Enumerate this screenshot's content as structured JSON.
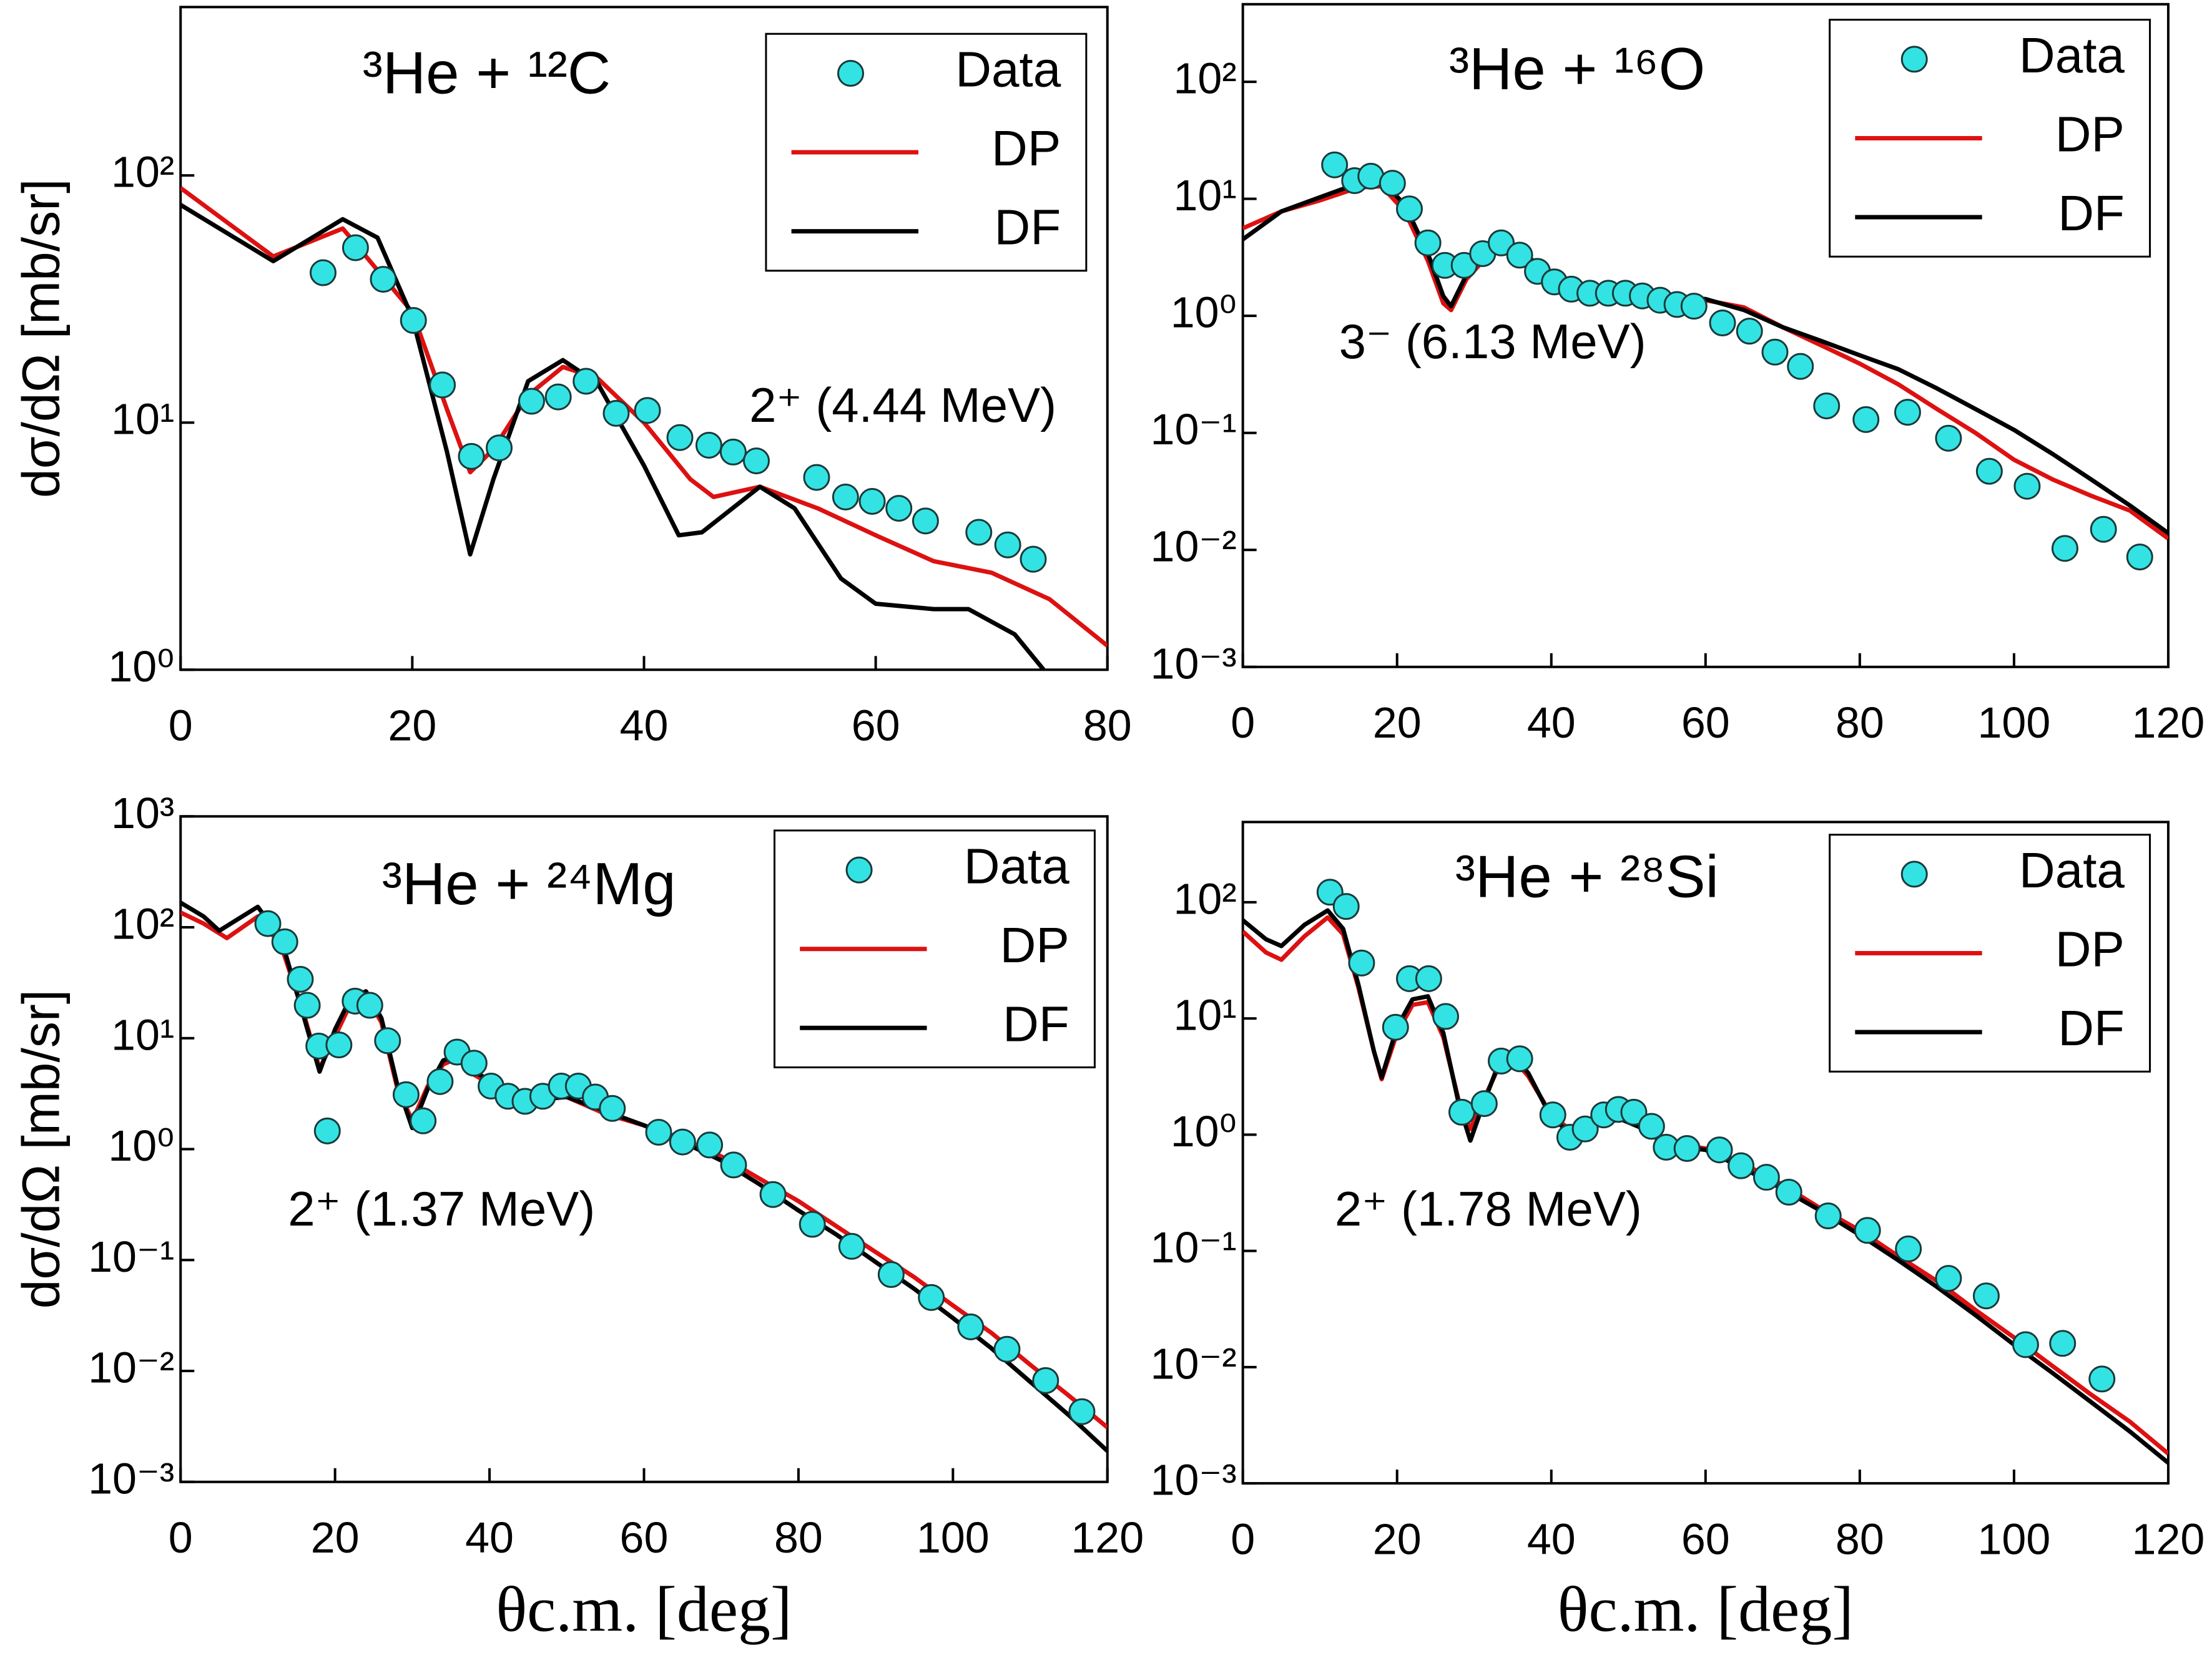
{
  "chart_data": [
    {
      "type": "line",
      "title": "³He + ¹²C",
      "annotation": "2⁺ (4.44 MeV)",
      "ylabel": "dσ/dΩ [mb/sr]",
      "log_y": true,
      "legend": "upper right",
      "xlim": [
        0,
        80
      ],
      "xticks": [
        0,
        20,
        40,
        60,
        80
      ],
      "ylim": [
        1,
        480
      ],
      "yticks": [
        {
          "value": 1,
          "label": "10⁰"
        },
        {
          "value": 10,
          "label": "10¹"
        },
        {
          "value": 100,
          "label": "10²"
        }
      ],
      "series": [
        {
          "name": "Data",
          "color": "#33e3e3",
          "style": "markers",
          "x": [
            12.3,
            15.1,
            17.5,
            20.1,
            22.6,
            25.1,
            27.5,
            30.3,
            32.6,
            35.0,
            37.6,
            40.3,
            43.1,
            45.6,
            47.7,
            49.7,
            54.9,
            57.4,
            59.7,
            62.0,
            64.3,
            68.9,
            71.4,
            73.6
          ],
          "values": [
            40.4,
            51,
            38,
            25.9,
            14.2,
            7.3,
            7.9,
            12.2,
            12.7,
            14.7,
            10.9,
            11.2,
            8.7,
            8.1,
            7.6,
            7.0,
            6.0,
            5.0,
            4.8,
            4.5,
            4.0,
            3.6,
            3.2,
            2.8
          ]
        },
        {
          "name": "DP",
          "color": "#dd1111",
          "style": "line",
          "x": [
            0,
            8,
            14,
            20,
            23,
            25,
            27,
            30,
            33,
            36,
            40,
            44,
            46,
            50,
            55,
            60,
            65,
            70,
            75,
            80
          ],
          "values": [
            89,
            47,
            61,
            28,
            11.3,
            6.3,
            7.8,
            12.9,
            16.8,
            15.1,
            10,
            5.9,
            5.0,
            5.5,
            4.5,
            3.5,
            2.75,
            2.47,
            1.93,
            1.25
          ]
        },
        {
          "name": "DF",
          "color": "#000000",
          "style": "line",
          "x": [
            0,
            8,
            14,
            17,
            20,
            23,
            25,
            27,
            30,
            33,
            36,
            40,
            43,
            45,
            50,
            53,
            57,
            60,
            65,
            68,
            72,
            74.5
          ],
          "values": [
            76,
            45,
            66.5,
            56,
            26.6,
            7.6,
            2.93,
            5.9,
            14.7,
            17.9,
            14.4,
            6.7,
            3.5,
            3.6,
            5.5,
            4.5,
            2.34,
            1.85,
            1.76,
            1.76,
            1.39,
            1.0
          ]
        }
      ]
    },
    {
      "type": "line",
      "title": "³He + ¹⁶O",
      "annotation": "3⁻ (6.13 MeV)",
      "log_y": true,
      "legend": "upper right",
      "xlim": [
        0,
        120
      ],
      "xticks": [
        0,
        20,
        40,
        60,
        80,
        100,
        120
      ],
      "ylim": [
        0.001,
        460
      ],
      "yticks": [
        {
          "value": 0.001,
          "label": "10⁻³"
        },
        {
          "value": 0.01,
          "label": "10⁻²"
        },
        {
          "value": 0.1,
          "label": "10⁻¹"
        },
        {
          "value": 1,
          "label": "10⁰"
        },
        {
          "value": 10,
          "label": "10¹"
        },
        {
          "value": 100,
          "label": "10²"
        }
      ],
      "series": [
        {
          "name": "Data",
          "color": "#33e3e3",
          "style": "markers",
          "x": [
            11.9,
            14.5,
            16.6,
            19.4,
            21.6,
            24.0,
            26.2,
            28.7,
            31.1,
            33.5,
            35.9,
            38.2,
            40.4,
            42.6,
            45.0,
            47.4,
            49.6,
            51.8,
            54.1,
            56.3,
            58.5,
            62.2,
            65.7,
            69.0,
            72.3,
            75.7,
            80.8,
            86.2,
            91.5,
            96.8,
            101.7,
            106.6,
            111.6,
            116.3
          ],
          "values": [
            19.5,
            14.3,
            15.6,
            13.6,
            8.2,
            4.2,
            2.7,
            2.7,
            3.4,
            4.2,
            3.3,
            2.4,
            1.95,
            1.69,
            1.56,
            1.56,
            1.56,
            1.48,
            1.36,
            1.25,
            1.21,
            0.87,
            0.74,
            0.49,
            0.37,
            0.17,
            0.13,
            0.15,
            0.09,
            0.047,
            0.035,
            0.0103,
            0.015,
            0.0087
          ]
        },
        {
          "name": "DP",
          "color": "#dd1111",
          "style": "line",
          "x": [
            0,
            5,
            10,
            15,
            18,
            21,
            24,
            26,
            27,
            29,
            32,
            35,
            38,
            42,
            46,
            50,
            55,
            60,
            65,
            70,
            75,
            80,
            85,
            90,
            95,
            100,
            105,
            110,
            115,
            120
          ],
          "values": [
            5.6,
            7.8,
            9.7,
            12.5,
            12.8,
            7.8,
            2.95,
            1.28,
            1.12,
            2.06,
            3.4,
            3.6,
            2.7,
            1.79,
            1.65,
            1.56,
            1.39,
            1.36,
            1.18,
            0.8,
            0.56,
            0.39,
            0.26,
            0.16,
            0.1,
            0.059,
            0.04,
            0.029,
            0.0217,
            0.0125
          ]
        },
        {
          "name": "DF",
          "color": "#000000",
          "style": "line",
          "x": [
            0,
            5,
            10,
            15,
            18,
            21,
            24,
            26,
            27,
            29,
            32,
            35,
            38,
            42,
            46,
            50,
            55,
            60,
            65,
            70,
            75,
            80,
            85,
            90,
            95,
            100,
            105,
            110,
            115,
            120
          ],
          "values": [
            4.5,
            7.8,
            10.3,
            13.6,
            14.3,
            8.9,
            3.4,
            1.47,
            1.21,
            2.24,
            3.6,
            3.8,
            2.87,
            1.95,
            1.74,
            1.65,
            1.47,
            1.39,
            1.12,
            0.8,
            0.61,
            0.46,
            0.35,
            0.24,
            0.16,
            0.106,
            0.066,
            0.04,
            0.024,
            0.0139
          ]
        }
      ]
    },
    {
      "type": "line",
      "title": "³He + ²⁴Mg",
      "annotation": "2⁺ (1.37 MeV)",
      "ylabel": "dσ/dΩ [mb/sr]",
      "xlabel": "θc.m.   [deg]",
      "log_y": true,
      "legend": "upper right",
      "xlim": [
        0,
        120
      ],
      "xticks": [
        0,
        20,
        40,
        60,
        80,
        100,
        120
      ],
      "ylim": [
        0.001,
        1000
      ],
      "yticks": [
        {
          "value": 0.001,
          "label": "10⁻³"
        },
        {
          "value": 0.01,
          "label": "10⁻²"
        },
        {
          "value": 0.1,
          "label": "10⁻¹"
        },
        {
          "value": 1,
          "label": "10⁰"
        },
        {
          "value": 10,
          "label": "10¹"
        },
        {
          "value": 100,
          "label": "10²"
        },
        {
          "value": 1000,
          "label": "10³"
        }
      ],
      "series": [
        {
          "name": "Data",
          "color": "#33e3e3",
          "style": "markers",
          "x": [
            11.3,
            13.5,
            15.5,
            16.4,
            17.9,
            19.0,
            20.5,
            22.6,
            24.5,
            26.8,
            29.2,
            31.4,
            33.6,
            35.8,
            38.0,
            40.2,
            42.4,
            44.6,
            46.9,
            49.3,
            51.5,
            53.7,
            55.9,
            61.9,
            65.0,
            68.5,
            71.6,
            76.7,
            81.8,
            86.9,
            92.0,
            97.2,
            102.3,
            107.0,
            112.0,
            116.7
          ],
          "values": [
            108,
            74,
            34,
            19.8,
            8.5,
            1.46,
            8.7,
            21.6,
            19.8,
            9.5,
            3.1,
            1.8,
            4.07,
            7.5,
            5.96,
            3.7,
            3.0,
            2.7,
            3.0,
            3.7,
            3.7,
            2.95,
            2.33,
            1.42,
            1.16,
            1.09,
            0.72,
            0.39,
            0.21,
            0.133,
            0.074,
            0.046,
            0.025,
            0.0157,
            0.0082,
            0.0043
          ]
        },
        {
          "name": "DP",
          "color": "#dd1111",
          "style": "line",
          "x": [
            0,
            3,
            6,
            10,
            13,
            16,
            18,
            20,
            22,
            24,
            26,
            28,
            30,
            32,
            34,
            36,
            38,
            42,
            46,
            50,
            55,
            60,
            65,
            70,
            75,
            80,
            85,
            90,
            95,
            100,
            105,
            110,
            115,
            120
          ],
          "values": [
            136,
            108,
            80,
            125,
            69,
            16.1,
            5.3,
            10.4,
            20.4,
            24.3,
            13.9,
            3.7,
            1.8,
            3.7,
            5.8,
            6.7,
            4.7,
            3.2,
            2.8,
            2.95,
            2.08,
            1.64,
            1.23,
            0.86,
            0.54,
            0.34,
            0.2,
            0.118,
            0.07,
            0.039,
            0.022,
            0.0114,
            0.006,
            0.0031
          ]
        },
        {
          "name": "DF",
          "color": "#000000",
          "style": "line",
          "x": [
            0,
            3,
            5,
            10,
            13,
            16,
            18,
            20,
            22,
            24,
            26,
            28,
            30,
            32,
            34,
            36,
            38,
            42,
            46,
            50,
            55,
            60,
            65,
            70,
            75,
            80,
            85,
            90,
            95,
            100,
            105,
            110,
            115,
            120
          ],
          "values": [
            167,
            125,
            93,
            153,
            80,
            15.2,
            5.0,
            12.0,
            22.9,
            26.5,
            15.2,
            3.95,
            1.55,
            3.5,
            6.3,
            7.1,
            5.0,
            3.5,
            2.8,
            2.95,
            2.2,
            1.64,
            1.16,
            0.79,
            0.48,
            0.28,
            0.168,
            0.096,
            0.055,
            0.03,
            0.016,
            0.008,
            0.004,
            0.0019
          ]
        }
      ]
    },
    {
      "type": "line",
      "title": "³He + ²⁸Si",
      "annotation": "2⁺ (1.78 MeV)",
      "xlabel": "θc.m.   [deg]",
      "log_y": true,
      "legend": "upper right",
      "xlim": [
        0,
        120
      ],
      "xticks": [
        0,
        20,
        40,
        60,
        80,
        100,
        120
      ],
      "ylim": [
        0.001,
        490
      ],
      "yticks": [
        {
          "value": 0.001,
          "label": "10⁻³"
        },
        {
          "value": 0.01,
          "label": "10⁻²"
        },
        {
          "value": 0.1,
          "label": "10⁻¹"
        },
        {
          "value": 1,
          "label": "10⁰"
        },
        {
          "value": 10,
          "label": "10¹"
        },
        {
          "value": 100,
          "label": "10²"
        }
      ],
      "series": [
        {
          "name": "Data",
          "color": "#33e3e3",
          "style": "markers",
          "x": [
            11.3,
            13.4,
            15.4,
            19.8,
            21.6,
            24.1,
            26.3,
            28.4,
            31.3,
            33.5,
            35.9,
            40.2,
            42.4,
            44.4,
            46.8,
            48.7,
            50.7,
            53.0,
            54.9,
            57.6,
            61.8,
            64.6,
            67.9,
            70.8,
            75.9,
            81.0,
            86.3,
            91.5,
            96.4,
            101.5,
            106.3,
            111.4
          ],
          "values": [
            122,
            92,
            30,
            8.4,
            22,
            22,
            10.4,
            1.56,
            1.85,
            4.3,
            4.5,
            1.48,
            0.95,
            1.12,
            1.48,
            1.65,
            1.56,
            1.18,
            0.78,
            0.76,
            0.74,
            0.54,
            0.43,
            0.32,
            0.2,
            0.15,
            0.104,
            0.058,
            0.041,
            0.0156,
            0.016,
            0.0079
          ]
        },
        {
          "name": "DP",
          "color": "#dd1111",
          "style": "line",
          "x": [
            0,
            3,
            5,
            8,
            11,
            13,
            15,
            17,
            18,
            20,
            22,
            24,
            26,
            28,
            29.5,
            31,
            33,
            35,
            37,
            40,
            43,
            46,
            49,
            52,
            55,
            60,
            65,
            70,
            75,
            80,
            85,
            90,
            95,
            100,
            105,
            110,
            115,
            120
          ],
          "values": [
            56,
            37,
            32,
            51,
            74,
            53,
            18.3,
            5.2,
            3.0,
            7.5,
            13.1,
            13.8,
            6.9,
            1.96,
            1.12,
            1.85,
            3.6,
            4.5,
            3.2,
            1.48,
            1.03,
            1.29,
            1.4,
            1.12,
            0.85,
            0.76,
            0.56,
            0.37,
            0.23,
            0.15,
            0.09,
            0.055,
            0.031,
            0.018,
            0.0102,
            0.0058,
            0.0034,
            0.0018
          ]
        },
        {
          "name": "DF",
          "color": "#000000",
          "style": "line",
          "x": [
            0,
            3,
            5,
            8,
            11,
            13,
            15,
            17,
            18,
            20,
            22,
            24,
            26,
            28,
            29.5,
            31,
            33,
            35,
            37,
            40,
            43,
            46,
            49,
            52,
            55,
            60,
            65,
            70,
            75,
            80,
            85,
            90,
            95,
            100,
            105,
            110,
            115,
            120
          ],
          "values": [
            70,
            48,
            42,
            64,
            85,
            59,
            19.3,
            5.2,
            3.1,
            8.4,
            14.6,
            15.5,
            7.5,
            1.85,
            0.89,
            1.7,
            3.8,
            4.8,
            3.4,
            1.4,
            0.97,
            1.22,
            1.36,
            1.12,
            0.8,
            0.74,
            0.51,
            0.34,
            0.22,
            0.137,
            0.083,
            0.049,
            0.028,
            0.0156,
            0.0089,
            0.005,
            0.0028,
            0.0015
          ]
        }
      ]
    }
  ]
}
